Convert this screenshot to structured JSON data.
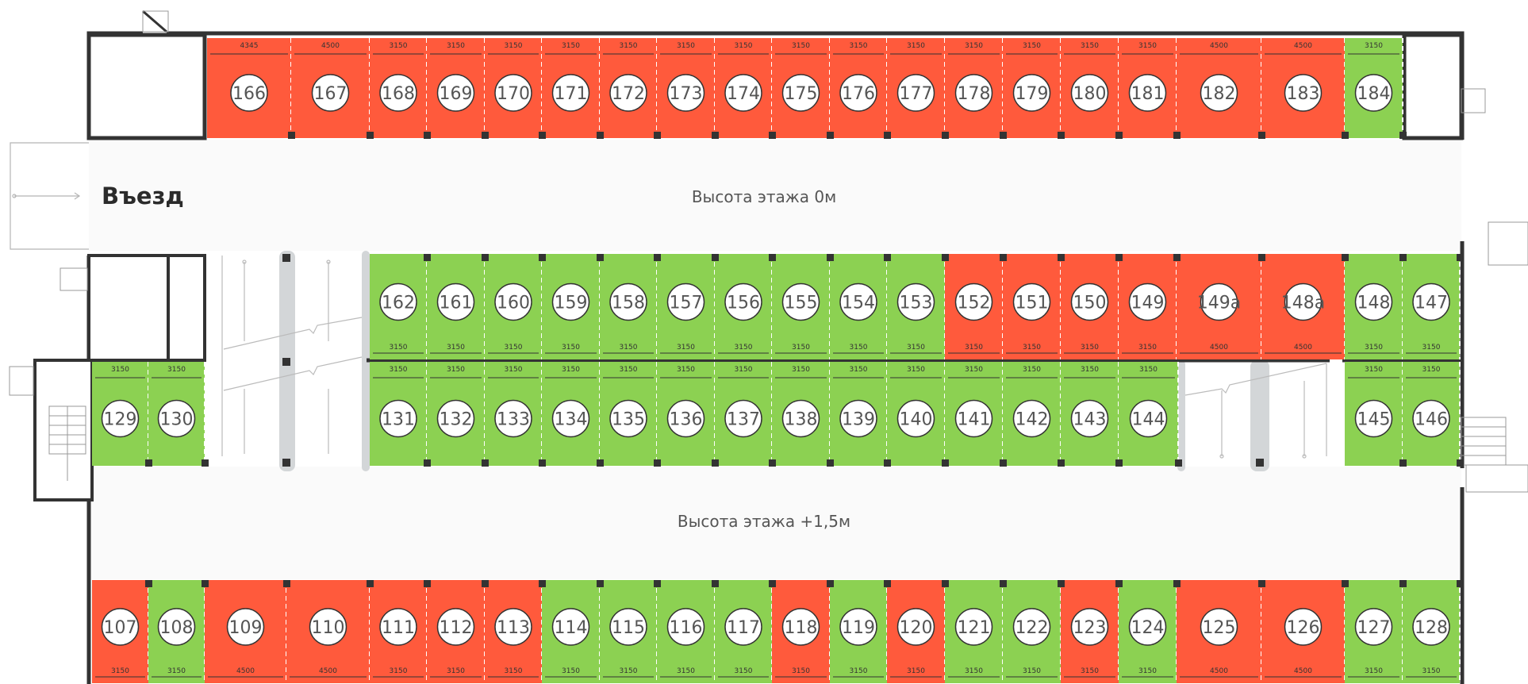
{
  "labels": {
    "entry": "Въезд",
    "upper_height": "Высота этажа 0м",
    "lower_height": "Высота этажа +1,5м"
  },
  "colors": {
    "occupied": "#ff5a3c",
    "available": "#8cd152",
    "wall": "#333333",
    "ramp": "#d3d6d8"
  },
  "rows": [
    {
      "name": "row-top",
      "dim_position": "top",
      "spots": [
        {
          "n": "166",
          "w": "4345",
          "s": "occupied"
        },
        {
          "n": "167",
          "w": "4500",
          "s": "occupied"
        },
        {
          "n": "168",
          "w": "3150",
          "s": "occupied"
        },
        {
          "n": "169",
          "w": "3150",
          "s": "occupied"
        },
        {
          "n": "170",
          "w": "3150",
          "s": "occupied"
        },
        {
          "n": "171",
          "w": "3150",
          "s": "occupied"
        },
        {
          "n": "172",
          "w": "3150",
          "s": "occupied"
        },
        {
          "n": "173",
          "w": "3150",
          "s": "occupied"
        },
        {
          "n": "174",
          "w": "3150",
          "s": "occupied"
        },
        {
          "n": "175",
          "w": "3150",
          "s": "occupied"
        },
        {
          "n": "176",
          "w": "3150",
          "s": "occupied"
        },
        {
          "n": "177",
          "w": "3150",
          "s": "occupied"
        },
        {
          "n": "178",
          "w": "3150",
          "s": "occupied"
        },
        {
          "n": "179",
          "w": "3150",
          "s": "occupied"
        },
        {
          "n": "180",
          "w": "3150",
          "s": "occupied"
        },
        {
          "n": "181",
          "w": "3150",
          "s": "occupied"
        },
        {
          "n": "182",
          "w": "4500",
          "s": "occupied"
        },
        {
          "n": "183",
          "w": "4500",
          "s": "occupied"
        },
        {
          "n": "184",
          "w": "3150",
          "s": "available"
        }
      ]
    },
    {
      "name": "row-upper-middle",
      "dim_position": "bottom",
      "spots": [
        {
          "n": "162",
          "w": "3150",
          "s": "available"
        },
        {
          "n": "161",
          "w": "3150",
          "s": "available"
        },
        {
          "n": "160",
          "w": "3150",
          "s": "available"
        },
        {
          "n": "159",
          "w": "3150",
          "s": "available"
        },
        {
          "n": "158",
          "w": "3150",
          "s": "available"
        },
        {
          "n": "157",
          "w": "3150",
          "s": "available"
        },
        {
          "n": "156",
          "w": "3150",
          "s": "available"
        },
        {
          "n": "155",
          "w": "3150",
          "s": "available"
        },
        {
          "n": "154",
          "w": "3150",
          "s": "available"
        },
        {
          "n": "153",
          "w": "3150",
          "s": "available"
        },
        {
          "n": "152",
          "w": "3150",
          "s": "occupied"
        },
        {
          "n": "151",
          "w": "3150",
          "s": "occupied"
        },
        {
          "n": "150",
          "w": "3150",
          "s": "occupied"
        },
        {
          "n": "149",
          "w": "3150",
          "s": "occupied"
        },
        {
          "n": "149а",
          "w": "4500",
          "s": "occupied"
        },
        {
          "n": "148а",
          "w": "4500",
          "s": "occupied"
        },
        {
          "n": "148",
          "w": "3150",
          "s": "available"
        },
        {
          "n": "147",
          "w": "3150",
          "s": "available"
        }
      ]
    },
    {
      "name": "row-lower-middle-left",
      "dim_position": "top",
      "spots": [
        {
          "n": "129",
          "w": "3150",
          "s": "available"
        },
        {
          "n": "130",
          "w": "3150",
          "s": "available"
        }
      ]
    },
    {
      "name": "row-lower-middle",
      "dim_position": "top",
      "spots": [
        {
          "n": "131",
          "w": "3150",
          "s": "available"
        },
        {
          "n": "132",
          "w": "3150",
          "s": "available"
        },
        {
          "n": "133",
          "w": "3150",
          "s": "available"
        },
        {
          "n": "134",
          "w": "3150",
          "s": "available"
        },
        {
          "n": "135",
          "w": "3150",
          "s": "available"
        },
        {
          "n": "136",
          "w": "3150",
          "s": "available"
        },
        {
          "n": "137",
          "w": "3150",
          "s": "available"
        },
        {
          "n": "138",
          "w": "3150",
          "s": "available"
        },
        {
          "n": "139",
          "w": "3150",
          "s": "available"
        },
        {
          "n": "140",
          "w": "3150",
          "s": "available"
        },
        {
          "n": "141",
          "w": "3150",
          "s": "available"
        },
        {
          "n": "142",
          "w": "3150",
          "s": "available"
        },
        {
          "n": "143",
          "w": "3150",
          "s": "available"
        },
        {
          "n": "144",
          "w": "3150",
          "s": "available"
        }
      ]
    },
    {
      "name": "row-lower-middle-right",
      "dim_position": "top",
      "spots": [
        {
          "n": "145",
          "w": "3150",
          "s": "available"
        },
        {
          "n": "146",
          "w": "3150",
          "s": "available"
        }
      ]
    },
    {
      "name": "row-bottom",
      "dim_position": "bottom",
      "spots": [
        {
          "n": "107",
          "w": "3150",
          "s": "occupied"
        },
        {
          "n": "108",
          "w": "3150",
          "s": "available"
        },
        {
          "n": "109",
          "w": "4500",
          "s": "occupied"
        },
        {
          "n": "110",
          "w": "4500",
          "s": "occupied"
        },
        {
          "n": "111",
          "w": "3150",
          "s": "occupied"
        },
        {
          "n": "112",
          "w": "3150",
          "s": "occupied"
        },
        {
          "n": "113",
          "w": "3150",
          "s": "occupied"
        },
        {
          "n": "114",
          "w": "3150",
          "s": "available"
        },
        {
          "n": "115",
          "w": "3150",
          "s": "available"
        },
        {
          "n": "116",
          "w": "3150",
          "s": "available"
        },
        {
          "n": "117",
          "w": "3150",
          "s": "available"
        },
        {
          "n": "118",
          "w": "3150",
          "s": "occupied"
        },
        {
          "n": "119",
          "w": "3150",
          "s": "available"
        },
        {
          "n": "120",
          "w": "3150",
          "s": "occupied"
        },
        {
          "n": "121",
          "w": "3150",
          "s": "available"
        },
        {
          "n": "122",
          "w": "3150",
          "s": "available"
        },
        {
          "n": "123",
          "w": "3150",
          "s": "occupied"
        },
        {
          "n": "124",
          "w": "3150",
          "s": "available"
        },
        {
          "n": "125",
          "w": "4500",
          "s": "occupied"
        },
        {
          "n": "126",
          "w": "4500",
          "s": "occupied"
        },
        {
          "n": "127",
          "w": "3150",
          "s": "available"
        },
        {
          "n": "128",
          "w": "3150",
          "s": "available"
        }
      ]
    }
  ]
}
